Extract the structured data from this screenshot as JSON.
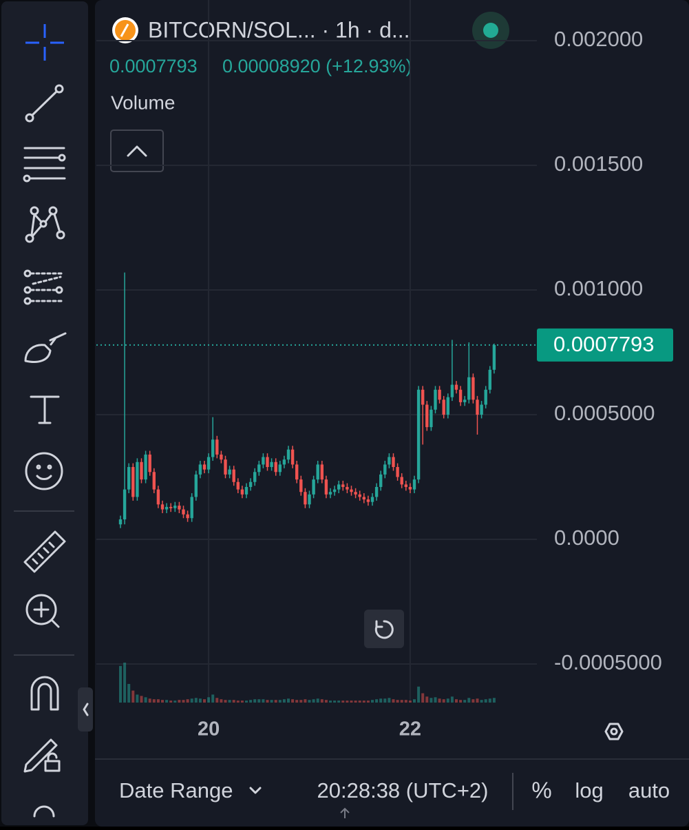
{
  "header": {
    "symbol": "BITCORN/SOL... · 1h · d...",
    "change": "0.00008920 (+12.93%)",
    "indicator": "Volume"
  },
  "chart_data": {
    "type": "candlestick",
    "categories": [
      null,
      null,
      null,
      null,
      null,
      null,
      null,
      null,
      null,
      null,
      null,
      null,
      null,
      null,
      null,
      null,
      null,
      null,
      null,
      null,
      null,
      "20",
      null,
      null,
      null,
      null,
      null,
      null,
      null,
      null,
      null,
      null,
      null,
      null,
      null,
      null,
      null,
      null,
      null,
      null,
      null,
      null,
      null,
      null,
      null,
      null,
      null,
      null,
      null,
      null,
      null,
      null,
      null,
      null,
      null,
      null,
      null,
      null,
      null,
      null,
      null,
      null,
      null,
      null,
      null,
      null,
      null,
      null,
      null,
      "22",
      null,
      null,
      null,
      null,
      null,
      null,
      null,
      null,
      null,
      null,
      null,
      null,
      null,
      null,
      null,
      null,
      null,
      null,
      null,
      null
    ],
    "open": [
      6e-05,
      8e-05,
      0.0002,
      0.00029,
      0.00017,
      0.00031,
      0.00024,
      0.00034,
      0.00027,
      0.0002,
      0.00014,
      0.00012,
      0.00013,
      0.000125,
      0.000135,
      0.00012,
      0.0001,
      8.5e-05,
      0.00017,
      0.00026,
      0.0003,
      0.00028,
      0.00033,
      0.0004,
      0.00034,
      0.00032,
      0.00026,
      0.00028,
      0.00023,
      0.0002,
      0.00018,
      0.00021,
      0.00023,
      0.00027,
      0.0003,
      0.00033,
      0.00029,
      0.00031,
      0.00027,
      0.0003,
      0.00032,
      0.00036,
      0.0003,
      0.00024,
      0.00019,
      0.00014,
      0.00018,
      0.00024,
      0.0003,
      0.00024,
      0.00018,
      0.00019,
      0.0002,
      0.00022,
      0.00021,
      0.0002,
      0.00019,
      0.00018,
      0.00017,
      0.00016,
      0.00015,
      0.00017,
      0.00021,
      0.00026,
      0.0003,
      0.00033,
      0.00029,
      0.00025,
      0.00022,
      0.00021,
      0.0002,
      0.00024,
      0.0006,
      0.00054,
      0.00045,
      0.00052,
      0.0006,
      0.00056,
      0.0005,
      0.00057,
      0.00062,
      0.0006,
      0.00055,
      0.00056,
      0.00065,
      0.00056,
      0.0005,
      0.00054,
      0.0006,
      0.00068
    ],
    "high": [
      9.5e-05,
      0.00107,
      0.000305,
      0.000305,
      0.000325,
      0.000325,
      0.000355,
      0.000355,
      0.000285,
      0.000215,
      0.000155,
      0.000145,
      0.000145,
      0.00015,
      0.00015,
      0.000135,
      0.000115,
      0.000185,
      0.000275,
      0.000315,
      0.000315,
      0.000345,
      0.00049,
      0.000415,
      0.000355,
      0.000335,
      0.000295,
      0.000295,
      0.000245,
      0.000215,
      0.000225,
      0.000245,
      0.000285,
      0.000315,
      0.000345,
      0.000345,
      0.000325,
      0.000325,
      0.000315,
      0.000335,
      0.000375,
      0.000375,
      0.000315,
      0.000255,
      0.000205,
      0.000195,
      0.000255,
      0.000315,
      0.000315,
      0.000255,
      0.000205,
      0.000215,
      0.000235,
      0.000235,
      0.000225,
      0.000215,
      0.000205,
      0.000195,
      0.000185,
      0.000175,
      0.000185,
      0.000225,
      0.000275,
      0.000315,
      0.000345,
      0.000345,
      0.000305,
      0.000265,
      0.000235,
      0.000225,
      0.000255,
      0.000615,
      0.000615,
      0.000555,
      0.000535,
      0.000615,
      0.000615,
      0.000575,
      0.000585,
      0.0008,
      0.000635,
      0.000615,
      0.000575,
      0.00079,
      0.000665,
      0.000575,
      0.000555,
      0.000615,
      0.000695,
      0.000785
    ],
    "low": [
      4.5e-05,
      6e-05,
      0.000185,
      0.000155,
      0.000155,
      0.000225,
      0.000225,
      0.000255,
      0.000185,
      0.000125,
      0.000105,
      0.000105,
      0.00011,
      0.00011,
      0.000105,
      8.5e-05,
      7e-05,
      7e-05,
      0.000155,
      0.000245,
      0.000265,
      0.000265,
      0.000315,
      0.000325,
      0.000305,
      0.000245,
      0.000245,
      0.000215,
      0.000185,
      0.000165,
      0.000165,
      0.000195,
      0.000215,
      0.000255,
      0.000285,
      0.000275,
      0.000275,
      0.000255,
      0.000255,
      0.000285,
      0.000305,
      0.000285,
      0.000225,
      0.000175,
      0.000125,
      0.000125,
      0.000165,
      0.000225,
      0.000225,
      0.000165,
      0.000165,
      0.000175,
      0.000185,
      0.000195,
      0.000185,
      0.000175,
      0.000165,
      0.000155,
      0.000145,
      0.000135,
      0.000135,
      0.000155,
      0.000195,
      0.000245,
      0.000285,
      0.000275,
      0.000235,
      0.000205,
      0.000195,
      0.000185,
      0.000185,
      0.000225,
      0.00038,
      0.000435,
      0.000435,
      0.000505,
      0.000545,
      0.000485,
      0.000485,
      0.000555,
      0.000585,
      0.000535,
      0.000535,
      0.000545,
      0.000545,
      0.00042,
      0.000485,
      0.000525,
      0.000585,
      0.000665
    ],
    "close": [
      8e-05,
      0.0002,
      0.00029,
      0.00017,
      0.00031,
      0.00024,
      0.00034,
      0.00027,
      0.0002,
      0.00014,
      0.00012,
      0.00013,
      0.000125,
      0.000135,
      0.00012,
      0.0001,
      8.5e-05,
      0.00017,
      0.00026,
      0.0003,
      0.00028,
      0.00033,
      0.0004,
      0.00034,
      0.00032,
      0.00026,
      0.00028,
      0.00023,
      0.0002,
      0.00018,
      0.00021,
      0.00023,
      0.00027,
      0.0003,
      0.00033,
      0.00029,
      0.00031,
      0.00027,
      0.0003,
      0.00032,
      0.00036,
      0.0003,
      0.00024,
      0.00019,
      0.00014,
      0.00018,
      0.00024,
      0.0003,
      0.00024,
      0.00018,
      0.00019,
      0.0002,
      0.00022,
      0.00021,
      0.0002,
      0.00019,
      0.00018,
      0.00017,
      0.00016,
      0.00015,
      0.00017,
      0.00021,
      0.00026,
      0.0003,
      0.00033,
      0.00029,
      0.00025,
      0.00022,
      0.00021,
      0.0002,
      0.00024,
      0.0006,
      0.00054,
      0.00045,
      0.00052,
      0.0006,
      0.00056,
      0.0005,
      0.00057,
      0.00062,
      0.0006,
      0.00055,
      0.00056,
      0.00065,
      0.00056,
      0.0005,
      0.00054,
      0.0006,
      0.00068,
      0.0007793
    ],
    "volume": [
      55,
      60,
      28,
      18,
      12,
      10,
      8,
      6,
      5,
      5,
      4,
      4,
      3,
      3,
      4,
      4,
      5,
      6,
      7,
      6,
      5,
      8,
      12,
      7,
      5,
      4,
      4,
      4,
      3,
      3,
      3,
      4,
      5,
      5,
      5,
      4,
      4,
      4,
      4,
      5,
      6,
      5,
      4,
      4,
      5,
      4,
      5,
      6,
      5,
      4,
      3,
      3,
      3,
      3,
      3,
      3,
      3,
      3,
      3,
      3,
      4,
      5,
      6,
      6,
      7,
      5,
      4,
      4,
      4,
      3,
      5,
      24,
      14,
      9,
      7,
      8,
      6,
      5,
      6,
      9,
      5,
      4,
      4,
      7,
      5,
      6,
      4,
      5,
      6,
      7
    ],
    "up_color": "#26a69a",
    "down_color": "#ef5350",
    "ylim": [
      -0.0006547,
      0.002163
    ],
    "yticks": [
      {
        "value": -0.0005,
        "label": "-0.0005000"
      },
      {
        "value": 0,
        "label": "0.0000"
      },
      {
        "value": 0.0005,
        "label": "0.0005000"
      },
      {
        "value": 0.001,
        "label": "0.001000"
      },
      {
        "value": 0.0015,
        "label": "0.001500"
      },
      {
        "value": 0.002,
        "label": "0.002000"
      }
    ],
    "current_price": 0.0007793,
    "grid": true
  },
  "footer": {
    "date_range": "Date Range",
    "time": "20:28:38 (UTC+2)",
    "percent": "%",
    "log": "log",
    "auto": "auto"
  }
}
